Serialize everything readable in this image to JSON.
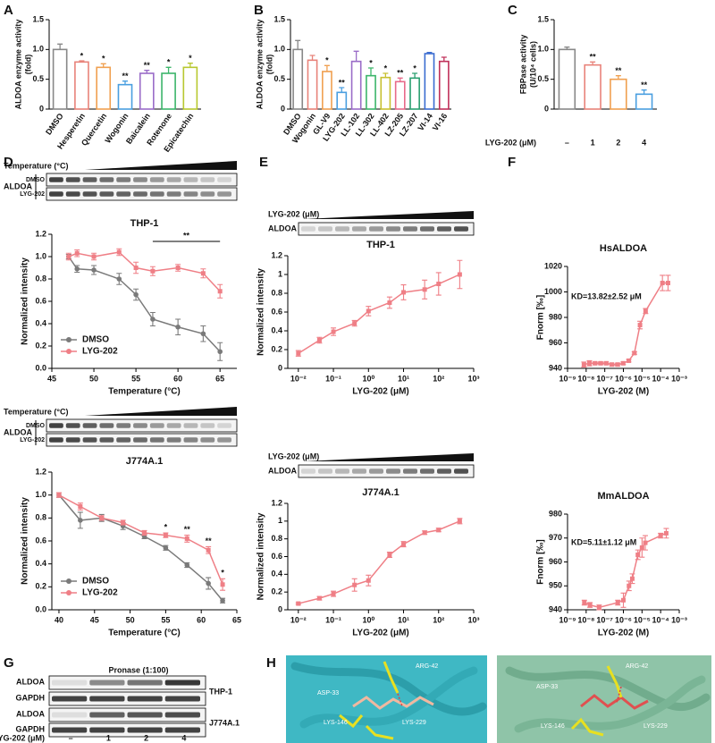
{
  "panels": [
    "A",
    "B",
    "C",
    "D",
    "E",
    "F",
    "G",
    "H"
  ],
  "blots": {
    "temperature": "Temperature (°C)",
    "aldoa": "ALDOA",
    "dmso": "DMSO",
    "lyg": "LYG-202",
    "conc": "LYG-202 (μM)",
    "pronase": "Pronase (1:100)",
    "gapdh": "GAPDH",
    "thp1": "THP-1",
    "j774": "J774A.1",
    "lanes": [
      "–",
      "1",
      "2",
      "4"
    ]
  },
  "docking": {
    "left": [
      "ARG-42",
      "ASP-33",
      "LYS-146",
      "LYS-229"
    ],
    "right": [
      "ARG-42",
      "ASP-33",
      "LYS-146",
      "LYS-229"
    ]
  },
  "chart_data": [
    {
      "type": "bar",
      "ylabel": [
        "ALDOA enzyme activity",
        "(fold)"
      ],
      "categories": [
        "DMSO",
        "Hesperetin",
        "Quercetin",
        "Wogonin",
        "Baicalein",
        "Rotenone",
        "Epicatechin"
      ],
      "values": [
        1.0,
        0.79,
        0.7,
        0.41,
        0.6,
        0.6,
        0.7
      ],
      "errors": [
        0.09,
        0.02,
        0.06,
        0.06,
        0.05,
        0.1,
        0.07
      ],
      "significance": [
        null,
        "*",
        "*",
        "**",
        "**",
        "*",
        "*"
      ],
      "colors": [
        "#888888",
        "#e8837a",
        "#f0a050",
        "#4a9fe0",
        "#9a6cc8",
        "#3cb56a",
        "#b8c830"
      ],
      "ylim": [
        0,
        1.5
      ],
      "yticks": [
        0,
        0.5,
        {
          "value": 1,
          "label": "1.0"
        },
        1.5
      ]
    },
    {
      "type": "bar",
      "ylabel": [
        "ALDOA enzyme activity",
        "(fold)"
      ],
      "categories": [
        "DMSO",
        "Wogonin",
        "GL-V9",
        "LYG-202",
        "LL-102",
        "LL-302",
        "LL-402",
        "LZ-205",
        "LZ-207",
        "VI-14",
        "VI-16"
      ],
      "values": [
        1.0,
        0.82,
        0.63,
        0.28,
        0.8,
        0.56,
        0.53,
        0.46,
        0.52,
        0.93,
        0.8
      ],
      "errors": [
        0.15,
        0.08,
        0.1,
        0.08,
        0.17,
        0.13,
        0.07,
        0.06,
        0.08,
        0.02,
        0.07
      ],
      "significance": [
        null,
        null,
        "*",
        "**",
        null,
        "*",
        "*",
        "**",
        "*",
        null,
        null
      ],
      "colors": [
        "#888888",
        "#e8837a",
        "#f0a050",
        "#4a9fe0",
        "#9a6cc8",
        "#3cb56a",
        "#c8c030",
        "#e86a8a",
        "#2aa070",
        "#3a6cd0",
        "#c0305a"
      ],
      "ylim": [
        0,
        1.5
      ],
      "yticks": [
        0,
        0.5,
        {
          "value": 1,
          "label": "1.0"
        },
        1.5
      ]
    },
    {
      "type": "bar",
      "ylabel": [
        "FBPase activity",
        "(U/10⁴ cells)"
      ],
      "xlabel": "LYG-202 (μM)",
      "categories": [
        "–",
        "1",
        "2",
        "4"
      ],
      "values": [
        1.0,
        0.74,
        0.5,
        0.25
      ],
      "errors": [
        0.04,
        0.05,
        0.06,
        0.07
      ],
      "significance": [
        null,
        "**",
        "**",
        "**"
      ],
      "colors": [
        "#888888",
        "#e8837a",
        "#f0a050",
        "#4a9fe0"
      ],
      "ylim": [
        0,
        1.5
      ],
      "yticks": [
        0,
        0.5,
        {
          "value": 1,
          "label": "1.0"
        },
        1.5
      ]
    },
    {
      "type": "line",
      "title": "THP-1",
      "xlabel": "Temperature (°C)",
      "ylabel": "Normalized intensity",
      "x": [
        47,
        48,
        50,
        53,
        55,
        57,
        60,
        63,
        65
      ],
      "xlim": [
        45,
        67
      ],
      "xticks": [
        45,
        50,
        55,
        60,
        65
      ],
      "ylim": [
        0,
        1.2
      ],
      "yticks": [
        {
          "value": 0,
          "label": "0.0"
        },
        0.2,
        0.4,
        0.6,
        0.8,
        {
          "value": 1,
          "label": "1.0"
        },
        1.2
      ],
      "legend": "lower left",
      "bracket_text": "**",
      "bracket_range": [
        57,
        65
      ],
      "series": [
        {
          "name": "DMSO",
          "color": "#7a7a7a",
          "values": [
            1.0,
            0.89,
            0.88,
            0.8,
            0.66,
            0.44,
            0.37,
            0.31,
            0.15
          ],
          "errors": [
            0.02,
            0.03,
            0.04,
            0.05,
            0.05,
            0.06,
            0.07,
            0.07,
            0.08
          ]
        },
        {
          "name": "LYG-202",
          "color": "#ef7f86",
          "values": [
            1.0,
            1.03,
            1.0,
            1.04,
            0.9,
            0.87,
            0.9,
            0.85,
            0.69
          ],
          "errors": [
            0.03,
            0.03,
            0.03,
            0.03,
            0.05,
            0.04,
            0.03,
            0.04,
            0.06
          ]
        }
      ]
    },
    {
      "type": "line",
      "title": "J774A.1",
      "xlabel": "Temperature (°C)",
      "ylabel": "Normalized intensity",
      "x": [
        40,
        43,
        46,
        49,
        52,
        55,
        58,
        61,
        63
      ],
      "xlim": [
        39,
        65
      ],
      "xticks": [
        40,
        45,
        50,
        55,
        60,
        65
      ],
      "ylim": [
        0,
        1.2
      ],
      "yticks": [
        {
          "value": 0,
          "label": "0.0"
        },
        0.2,
        0.4,
        0.6,
        0.8,
        {
          "value": 1,
          "label": "1.0"
        },
        1.2
      ],
      "legend": "lower left",
      "series": [
        {
          "name": "DMSO",
          "color": "#7a7a7a",
          "values": [
            1.0,
            0.78,
            0.8,
            0.73,
            0.64,
            0.54,
            0.39,
            0.23,
            0.08
          ],
          "errors": [
            0.02,
            0.07,
            0.03,
            0.03,
            0.02,
            0.02,
            0.02,
            0.05,
            0.02
          ]
        },
        {
          "name": "LYG-202",
          "color": "#ef7f86",
          "values": [
            1.0,
            0.9,
            0.8,
            0.76,
            0.67,
            0.65,
            0.62,
            0.52,
            0.22
          ],
          "errors": [
            0.02,
            0.03,
            0.02,
            0.02,
            0.02,
            0.02,
            0.03,
            0.03,
            0.05
          ],
          "significance": [
            null,
            null,
            null,
            null,
            null,
            "*",
            "**",
            "**",
            "*"
          ]
        }
      ]
    },
    {
      "type": "line",
      "title": "THP-1",
      "xlabel": "LYG-202 (μM)",
      "ylabel": "Normalized intensity",
      "xscale": "log",
      "x": [
        0.01,
        0.04,
        0.1,
        0.4,
        1,
        4,
        10,
        40,
        100,
        400
      ],
      "xlim": [
        0.005,
        1000
      ],
      "xticks": [
        {
          "value": 0.01,
          "label": "10⁻²"
        },
        {
          "value": 0.1,
          "label": "10⁻¹"
        },
        {
          "value": 1,
          "label": "10⁰"
        },
        {
          "value": 10,
          "label": "10¹"
        },
        {
          "value": 100,
          "label": "10²"
        },
        {
          "value": 1000,
          "label": "10³"
        }
      ],
      "ylim": [
        0,
        1.2
      ],
      "yticks": [
        0,
        0.2,
        0.4,
        0.6,
        0.8,
        1,
        1.2
      ],
      "series": [
        {
          "color": "#ef7f86",
          "values": [
            0.16,
            0.3,
            0.39,
            0.48,
            0.61,
            0.7,
            0.81,
            0.84,
            0.9,
            1.0
          ],
          "errors": [
            0.03,
            0.03,
            0.04,
            0.03,
            0.05,
            0.06,
            0.08,
            0.1,
            0.12,
            0.15
          ]
        }
      ]
    },
    {
      "type": "line",
      "title": "J774A.1",
      "xlabel": "LYG-202 (μM)",
      "ylabel": "Normalized intensity",
      "xscale": "log",
      "x": [
        0.01,
        0.04,
        0.1,
        0.4,
        1,
        4,
        10,
        40,
        100,
        400
      ],
      "xlim": [
        0.005,
        1000
      ],
      "xticks": [
        {
          "value": 0.01,
          "label": "10⁻²"
        },
        {
          "value": 0.1,
          "label": "10⁻¹"
        },
        {
          "value": 1,
          "label": "10⁰"
        },
        {
          "value": 10,
          "label": "10¹"
        },
        {
          "value": 100,
          "label": "10²"
        },
        {
          "value": 1000,
          "label": "10³"
        }
      ],
      "ylim": [
        0,
        1.2
      ],
      "yticks": [
        0,
        0.2,
        0.4,
        0.6,
        0.8,
        1,
        1.2
      ],
      "series": [
        {
          "color": "#ef7f86",
          "values": [
            0.07,
            0.13,
            0.18,
            0.28,
            0.33,
            0.62,
            0.74,
            0.87,
            0.9,
            1.0
          ],
          "errors": [
            0.01,
            0.02,
            0.03,
            0.07,
            0.06,
            0.03,
            0.03,
            0.02,
            0.02,
            0.03
          ]
        }
      ]
    },
    {
      "type": "line",
      "title": "HsALDOA",
      "annotation": "KD=13.82±2.52 μM",
      "xlabel": "LYG-202 (M)",
      "ylabel": "Fnorm [‰]",
      "xscale": "log",
      "x": [
        7.6e-09,
        1.5e-08,
        3e-08,
        6e-08,
        1.2e-07,
        2.4e-07,
        4.9e-07,
        9.8e-07,
        1.95e-06,
        3.9e-06,
        7.8e-06,
        1.56e-05,
        0.000125,
        0.00025
      ],
      "xlim": [
        1e-09,
        0.001
      ],
      "xticks": [
        {
          "value": 1e-09,
          "label": "10⁻⁹"
        },
        {
          "value": 1e-08,
          "label": "10⁻⁸"
        },
        {
          "value": 1e-07,
          "label": "10⁻⁷"
        },
        {
          "value": 1e-06,
          "label": "10⁻⁶"
        },
        {
          "value": 1e-05,
          "label": "10⁻⁵"
        },
        {
          "value": 0.0001,
          "label": "10⁻⁴"
        },
        {
          "value": 0.001,
          "label": "10⁻³"
        }
      ],
      "ylim": [
        940,
        1020
      ],
      "yticks": [
        940,
        960,
        980,
        1000,
        1020
      ],
      "series": [
        {
          "color": "#ef7f86",
          "values": [
            943,
            944,
            944,
            944,
            944,
            943,
            943,
            944,
            946,
            952,
            974,
            985,
            1007,
            1007
          ],
          "errors": [
            2,
            2,
            1,
            1,
            1,
            1,
            1,
            1,
            1,
            1,
            3,
            2,
            6,
            6
          ]
        }
      ]
    },
    {
      "type": "line",
      "title": "MmALDOA",
      "annotation": "KD=5.11±1.12 μM",
      "xlabel": "LYG-202 (M)",
      "ylabel": "Fnorm [‰]",
      "xscale": "log",
      "x": [
        8e-09,
        1.6e-08,
        5e-08,
        5e-07,
        1e-06,
        2e-06,
        3e-06,
        6e-06,
        1e-05,
        1.5e-05,
        0.0001,
        0.0002
      ],
      "xlim": [
        1e-09,
        0.001
      ],
      "xticks": [
        {
          "value": 1e-09,
          "label": "10⁻⁹"
        },
        {
          "value": 1e-08,
          "label": "10⁻⁸"
        },
        {
          "value": 1e-07,
          "label": "10⁻⁷"
        },
        {
          "value": 1e-06,
          "label": "10⁻⁶"
        },
        {
          "value": 1e-05,
          "label": "10⁻⁵"
        },
        {
          "value": 0.0001,
          "label": "10⁻⁴"
        },
        {
          "value": 0.001,
          "label": "10⁻³"
        }
      ],
      "ylim": [
        940,
        980
      ],
      "yticks": [
        940,
        950,
        960,
        970,
        980
      ],
      "series": [
        {
          "color": "#ef7f86",
          "values": [
            943,
            942,
            941,
            943,
            944,
            950,
            953,
            963,
            966,
            968,
            971,
            972
          ],
          "errors": [
            1,
            1,
            1,
            1,
            3,
            2,
            2,
            2,
            4,
            3,
            1,
            2
          ]
        }
      ]
    }
  ]
}
